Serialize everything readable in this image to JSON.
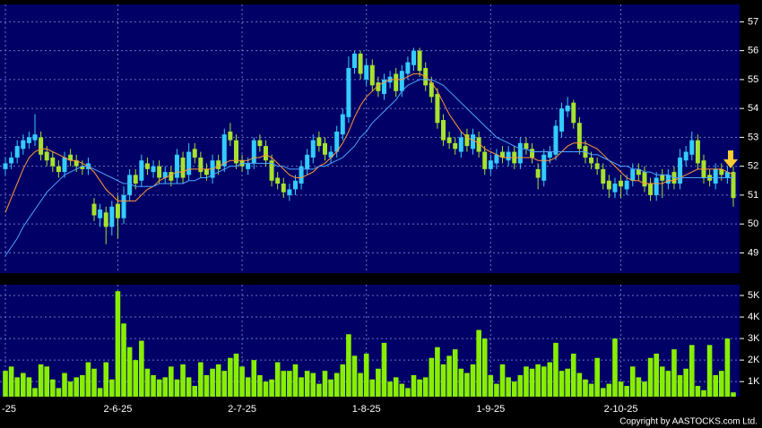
{
  "chart_data": [
    {
      "type": "candlestick",
      "open": [
        51.9,
        52.1,
        52.3,
        52.6,
        52.8,
        52.9,
        53.0,
        52.5,
        52.3,
        52.0,
        51.8,
        52.4,
        52.2,
        52.0,
        51.9,
        50.7,
        50.2,
        50.4,
        49.9,
        50.7,
        50.2,
        51.0,
        51.7,
        51.5,
        52.1,
        51.8,
        52.0,
        51.6,
        51.8,
        51.6,
        52.3,
        51.7,
        52.6,
        52.3,
        51.9,
        51.6,
        52.2,
        52.0,
        53.2,
        52.9,
        52.2,
        51.9,
        52.1,
        52.9,
        52.7,
        52.2,
        51.6,
        51.4,
        51.0,
        51.2,
        51.4,
        51.9,
        52.3,
        53.0,
        52.8,
        52.3,
        52.5,
        53.1,
        53.7,
        55.4,
        55.9,
        55.0,
        55.5,
        54.9,
        54.5,
        54.9,
        55.2,
        54.6,
        55.2,
        55.5,
        56.0,
        55.4,
        54.9,
        54.5,
        53.6,
        53.0,
        52.8,
        52.5,
        53.1,
        52.6,
        53.0,
        52.5,
        51.9,
        52.1,
        52.5,
        52.2,
        52.5,
        52.1,
        52.8,
        52.6,
        51.9,
        51.5,
        52.3,
        52.4,
        53.2,
        53.9,
        54.2,
        53.5,
        52.7,
        52.3,
        52.1,
        51.9,
        51.5,
        51.1,
        51.5,
        51.2,
        51.5,
        51.9,
        51.8,
        51.4,
        51.0,
        51.7,
        51.4,
        51.8,
        51.4,
        52.2,
        52.4,
        52.9,
        52.2,
        51.7,
        51.4,
        51.9,
        51.6,
        51.8
      ],
      "high": [
        52.3,
        52.5,
        52.9,
        53.1,
        53.2,
        53.8,
        53.2,
        52.7,
        52.5,
        52.2,
        52.5,
        52.6,
        52.4,
        52.2,
        52.3,
        50.9,
        50.7,
        50.6,
        50.8,
        51.0,
        51.3,
        51.9,
        51.9,
        52.4,
        52.3,
        52.2,
        52.2,
        52.0,
        52.0,
        52.6,
        52.5,
        52.8,
        52.8,
        52.5,
        52.1,
        52.4,
        52.4,
        53.3,
        53.5,
        53.1,
        52.4,
        52.3,
        53.0,
        53.1,
        52.9,
        52.4,
        51.8,
        51.6,
        51.4,
        51.7,
        52.2,
        52.6,
        53.1,
        53.2,
        53.0,
        52.7,
        53.4,
        54.0,
        55.8,
        56.0,
        56.0,
        55.7,
        55.7,
        55.1,
        55.2,
        55.3,
        55.4,
        55.5,
        55.8,
        56.1,
        56.1,
        55.6,
        55.1,
        54.7,
        53.8,
        53.2,
        53.0,
        53.2,
        53.3,
        53.3,
        53.2,
        52.7,
        52.4,
        52.6,
        52.7,
        52.7,
        52.7,
        53.0,
        53.0,
        52.8,
        52.1,
        52.6,
        52.7,
        53.6,
        54.2,
        54.4,
        54.3,
        53.7,
        52.9,
        52.5,
        52.3,
        52.1,
        51.7,
        51.6,
        51.7,
        51.7,
        52.1,
        52.1,
        52.0,
        51.6,
        51.8,
        51.9,
        51.9,
        52.0,
        52.6,
        52.7,
        53.2,
        53.1,
        52.4,
        51.9,
        52.1,
        52.1,
        52.0,
        52.0
      ],
      "low": [
        51.7,
        51.9,
        52.1,
        52.4,
        52.6,
        52.7,
        52.2,
        52.0,
        51.8,
        51.6,
        51.6,
        52.0,
        51.8,
        51.7,
        51.7,
        50.1,
        49.9,
        49.3,
        49.6,
        49.5,
        50.0,
        50.8,
        51.2,
        51.3,
        51.7,
        51.6,
        51.4,
        51.4,
        51.3,
        51.4,
        51.4,
        51.5,
        52.1,
        51.6,
        51.5,
        51.4,
        51.7,
        51.8,
        52.7,
        51.9,
        51.8,
        51.7,
        51.9,
        52.5,
        52.0,
        51.3,
        51.2,
        50.9,
        50.8,
        51.0,
        51.2,
        51.7,
        52.1,
        52.5,
        52.2,
        52.1,
        52.3,
        52.9,
        53.5,
        55.2,
        55.0,
        54.8,
        54.6,
        54.4,
        54.3,
        54.7,
        54.4,
        54.4,
        55.0,
        55.3,
        55.1,
        54.6,
        54.2,
        53.3,
        52.7,
        52.6,
        52.4,
        52.3,
        52.5,
        52.4,
        52.3,
        51.7,
        51.7,
        51.9,
        52.1,
        52.0,
        51.9,
        51.9,
        52.4,
        52.1,
        51.2,
        51.3,
        52.1,
        52.2,
        53.0,
        53.7,
        53.3,
        52.4,
        52.1,
        51.9,
        51.7,
        51.2,
        50.9,
        50.9,
        50.9,
        51.0,
        51.3,
        51.5,
        51.1,
        50.8,
        50.8,
        50.9,
        51.2,
        51.2,
        51.2,
        52.0,
        52.2,
        51.9,
        51.4,
        51.3,
        51.2,
        51.5,
        51.4,
        50.6
      ],
      "close": [
        52.1,
        52.3,
        52.7,
        52.9,
        53.0,
        53.1,
        52.4,
        52.2,
        52.0,
        51.8,
        52.3,
        52.2,
        52.0,
        51.9,
        52.1,
        50.3,
        50.5,
        49.9,
        50.6,
        50.2,
        51.0,
        51.7,
        51.4,
        52.2,
        51.9,
        52.0,
        51.6,
        51.8,
        51.5,
        52.4,
        51.6,
        52.5,
        52.3,
        51.8,
        51.7,
        52.2,
        51.9,
        53.1,
        52.9,
        52.1,
        52.0,
        52.1,
        52.9,
        52.7,
        52.2,
        51.5,
        51.4,
        51.1,
        51.2,
        51.5,
        52.0,
        52.4,
        52.9,
        52.7,
        52.4,
        52.5,
        53.2,
        53.8,
        55.4,
        55.9,
        55.2,
        55.5,
        54.8,
        54.6,
        55.0,
        55.1,
        54.6,
        55.3,
        55.6,
        56.0,
        55.3,
        54.8,
        54.4,
        53.5,
        52.9,
        52.8,
        52.6,
        53.0,
        52.7,
        53.1,
        52.5,
        51.9,
        52.2,
        52.4,
        52.3,
        52.5,
        52.1,
        52.8,
        52.6,
        52.3,
        51.6,
        52.4,
        52.5,
        53.4,
        54.0,
        54.1,
        53.5,
        52.6,
        52.3,
        52.1,
        51.9,
        51.4,
        51.2,
        51.4,
        51.3,
        51.5,
        51.9,
        51.7,
        51.3,
        51.0,
        51.6,
        51.5,
        51.7,
        51.4,
        52.3,
        52.5,
        52.9,
        52.1,
        51.6,
        51.5,
        51.9,
        51.7,
        51.8,
        50.9
      ],
      "up_color": "#33ccff",
      "down_color": "#a6e22e",
      "series": [
        {
          "color": "#ff9933",
          "values": [
            50.4,
            50.9,
            51.4,
            51.9,
            52.3,
            52.5,
            52.6,
            52.6,
            52.5,
            52.4,
            52.3,
            52.2,
            52.2,
            52.1,
            52.0,
            51.8,
            51.5,
            51.2,
            51.0,
            50.8,
            50.8,
            50.8,
            50.8,
            51.0,
            51.2,
            51.3,
            51.5,
            51.6,
            51.7,
            51.8,
            51.8,
            51.9,
            51.9,
            51.9,
            51.9,
            51.9,
            52.0,
            52.1,
            52.2,
            52.2,
            52.2,
            52.2,
            52.3,
            52.3,
            52.4,
            52.3,
            52.1,
            51.9,
            51.7,
            51.6,
            51.6,
            51.7,
            51.8,
            52.0,
            52.1,
            52.3,
            52.5,
            52.8,
            53.2,
            53.7,
            54.1,
            54.4,
            54.6,
            54.8,
            54.9,
            55.0,
            55.0,
            55.0,
            55.1,
            55.2,
            55.2,
            55.1,
            54.9,
            54.6,
            54.2,
            53.8,
            53.5,
            53.2,
            53.0,
            52.9,
            52.8,
            52.6,
            52.5,
            52.4,
            52.3,
            52.3,
            52.3,
            52.3,
            52.3,
            52.3,
            52.2,
            52.2,
            52.2,
            52.3,
            52.5,
            52.7,
            52.8,
            52.8,
            52.8,
            52.7,
            52.6,
            52.4,
            52.2,
            52.0,
            51.8,
            51.6,
            51.5,
            51.5,
            51.4,
            51.4,
            51.4,
            51.4,
            51.5,
            51.5,
            51.6,
            51.7,
            51.8,
            51.9,
            51.9,
            51.9,
            51.9,
            51.9,
            51.8,
            51.7
          ]
        },
        {
          "color": "#4da6ff",
          "values": [
            48.9,
            49.2,
            49.5,
            49.9,
            50.2,
            50.5,
            50.8,
            51.1,
            51.3,
            51.5,
            51.7,
            51.8,
            51.9,
            52.0,
            52.0,
            51.9,
            51.8,
            51.7,
            51.6,
            51.5,
            51.4,
            51.4,
            51.3,
            51.3,
            51.3,
            51.3,
            51.4,
            51.4,
            51.4,
            51.4,
            51.4,
            51.5,
            51.5,
            51.6,
            51.6,
            51.7,
            51.8,
            51.9,
            52.0,
            52.0,
            52.1,
            52.1,
            52.1,
            52.1,
            52.1,
            52.1,
            52.0,
            52.0,
            51.9,
            51.9,
            51.9,
            51.9,
            51.9,
            52.0,
            52.0,
            52.1,
            52.2,
            52.3,
            52.5,
            52.7,
            53.0,
            53.2,
            53.5,
            53.7,
            53.9,
            54.1,
            54.3,
            54.6,
            54.8,
            54.9,
            55.0,
            55.0,
            55.0,
            54.9,
            54.8,
            54.6,
            54.4,
            54.2,
            54.0,
            53.8,
            53.6,
            53.4,
            53.2,
            53.0,
            52.9,
            52.8,
            52.7,
            52.6,
            52.6,
            52.5,
            52.5,
            52.5,
            52.5,
            52.5,
            52.5,
            52.5,
            52.5,
            52.5,
            52.5,
            52.4,
            52.4,
            52.3,
            52.2,
            52.1,
            52.0,
            52.0,
            51.9,
            51.9,
            51.8,
            51.8,
            51.7,
            51.7,
            51.7,
            51.6,
            51.6,
            51.6,
            51.6,
            51.6,
            51.6,
            51.6,
            51.6,
            51.6,
            51.6,
            51.6
          ]
        }
      ],
      "ylim": [
        48.3,
        57.6
      ],
      "yticks": [
        49,
        50,
        51,
        52,
        53,
        54,
        55,
        56,
        57
      ],
      "grid": true
    },
    {
      "type": "bar",
      "categories": [
        "-25",
        null,
        null,
        null,
        null,
        null,
        null,
        null,
        null,
        null,
        null,
        null,
        null,
        null,
        null,
        null,
        null,
        null,
        null,
        "2-6-25",
        null,
        null,
        null,
        null,
        null,
        null,
        null,
        null,
        null,
        null,
        null,
        null,
        null,
        null,
        null,
        null,
        null,
        null,
        null,
        null,
        "2-7-25",
        null,
        null,
        null,
        null,
        null,
        null,
        null,
        null,
        null,
        null,
        null,
        null,
        null,
        null,
        null,
        null,
        null,
        null,
        null,
        null,
        "1-8-25",
        null,
        null,
        null,
        null,
        null,
        null,
        null,
        null,
        null,
        null,
        null,
        null,
        null,
        null,
        null,
        null,
        null,
        null,
        null,
        null,
        "1-9-25",
        null,
        null,
        null,
        null,
        null,
        null,
        null,
        null,
        null,
        null,
        null,
        null,
        null,
        null,
        null,
        null,
        null,
        null,
        null,
        null,
        null,
        "2-10-25",
        null,
        null,
        null,
        null,
        null,
        null,
        null,
        null,
        null,
        null,
        null,
        null,
        null,
        null,
        null,
        null,
        null,
        null,
        null
      ],
      "values": [
        1500,
        1700,
        1200,
        1400,
        1200,
        700,
        1800,
        1700,
        1100,
        700,
        1400,
        1000,
        1200,
        1300,
        1900,
        1600,
        700,
        1900,
        1100,
        5200,
        3700,
        2600,
        2000,
        2900,
        1600,
        1300,
        1100,
        1200,
        1700,
        1100,
        1800,
        1200,
        800,
        1900,
        1300,
        1600,
        1800,
        1500,
        2100,
        2300,
        1700,
        1200,
        2000,
        1300,
        1000,
        1100,
        1900,
        1500,
        1500,
        1800,
        1200,
        1500,
        1400,
        900,
        1500,
        1100,
        1400,
        1800,
        3200,
        2200,
        1400,
        2300,
        1100,
        1600,
        2800,
        1000,
        1200,
        900,
        700,
        1300,
        1100,
        1200,
        2100,
        2600,
        1800,
        2200,
        2500,
        1600,
        1400,
        1800,
        3400,
        3000,
        1300,
        900,
        1800,
        1200,
        1000,
        1300,
        1700,
        1600,
        1800,
        1700,
        1900,
        2800,
        1500,
        1600,
        2300,
        1400,
        1100,
        900,
        2100,
        700,
        900,
        3000,
        1000,
        800,
        1700,
        1200,
        1000,
        2100,
        2300,
        1700,
        1500,
        2500,
        1300,
        1600,
        2700,
        800,
        600,
        2700,
        1300,
        1500,
        3000,
        500
      ],
      "color": "#88ee00",
      "ylim": [
        300,
        5500
      ],
      "yticks": [
        {
          "value": 1000,
          "label": "1K"
        },
        {
          "value": 2000,
          "label": "2K"
        },
        {
          "value": 3000,
          "label": "3K"
        },
        {
          "value": 4000,
          "label": "4K"
        },
        {
          "value": 5000,
          "label": "5K"
        }
      ],
      "grid": true,
      "credit": "Copyright by AASTOCKS.com Ltd."
    }
  ]
}
